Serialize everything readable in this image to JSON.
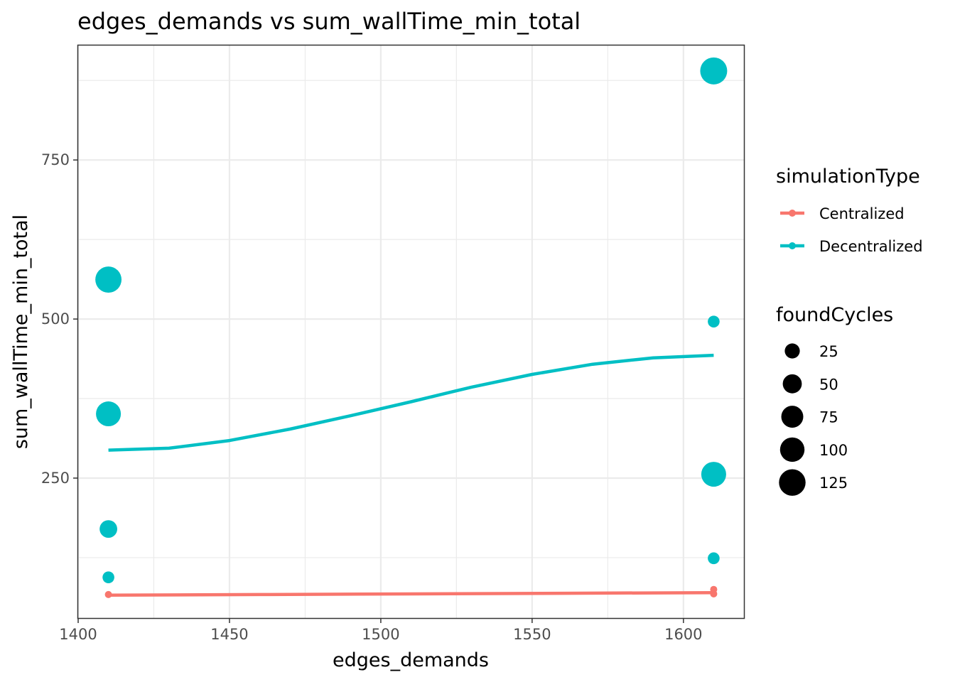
{
  "chart_data": {
    "type": "scatter",
    "title": "edges_demands  vs  sum_wallTime_min_total",
    "xlabel": "edges_demands",
    "ylabel": "sum_wallTime_min_total",
    "xlim": [
      1400,
      1620
    ],
    "ylim": [
      30,
      930
    ],
    "x_ticks": [
      1400,
      1450,
      1500,
      1550,
      1600
    ],
    "y_ticks": [
      250,
      500,
      750
    ],
    "grid": true,
    "series": [
      {
        "name": "Centralized",
        "color": "#F8766D",
        "points": [
          {
            "x": 1410,
            "y": 67,
            "size": 5
          },
          {
            "x": 1610,
            "y": 68,
            "size": 5
          },
          {
            "x": 1610,
            "y": 75,
            "size": 5
          }
        ],
        "smooth": [
          {
            "x": 1410,
            "y": 66
          },
          {
            "x": 1460,
            "y": 67
          },
          {
            "x": 1510,
            "y": 68
          },
          {
            "x": 1560,
            "y": 69
          },
          {
            "x": 1610,
            "y": 70
          }
        ]
      },
      {
        "name": "Decentralized",
        "color": "#00BFC4",
        "points": [
          {
            "x": 1410,
            "y": 562,
            "size": 120
          },
          {
            "x": 1410,
            "y": 351,
            "size": 105
          },
          {
            "x": 1410,
            "y": 170,
            "size": 40
          },
          {
            "x": 1410,
            "y": 94,
            "size": 12
          },
          {
            "x": 1610,
            "y": 890,
            "size": 130
          },
          {
            "x": 1610,
            "y": 496,
            "size": 12
          },
          {
            "x": 1610,
            "y": 256,
            "size": 105
          },
          {
            "x": 1610,
            "y": 124,
            "size": 12
          }
        ],
        "smooth": [
          {
            "x": 1410,
            "y": 294
          },
          {
            "x": 1430,
            "y": 297
          },
          {
            "x": 1450,
            "y": 309
          },
          {
            "x": 1470,
            "y": 327
          },
          {
            "x": 1490,
            "y": 348
          },
          {
            "x": 1510,
            "y": 370
          },
          {
            "x": 1530,
            "y": 393
          },
          {
            "x": 1550,
            "y": 413
          },
          {
            "x": 1570,
            "y": 429
          },
          {
            "x": 1590,
            "y": 439
          },
          {
            "x": 1610,
            "y": 443
          }
        ]
      }
    ],
    "legend": {
      "placement": "right",
      "color_title": "simulationType",
      "size_title": "foundCycles",
      "size_entries": [
        {
          "label": "25",
          "size": 25
        },
        {
          "label": "50",
          "size": 50
        },
        {
          "label": "75",
          "size": 75
        },
        {
          "label": "100",
          "size": 100
        },
        {
          "label": "125",
          "size": 125
        }
      ]
    }
  }
}
